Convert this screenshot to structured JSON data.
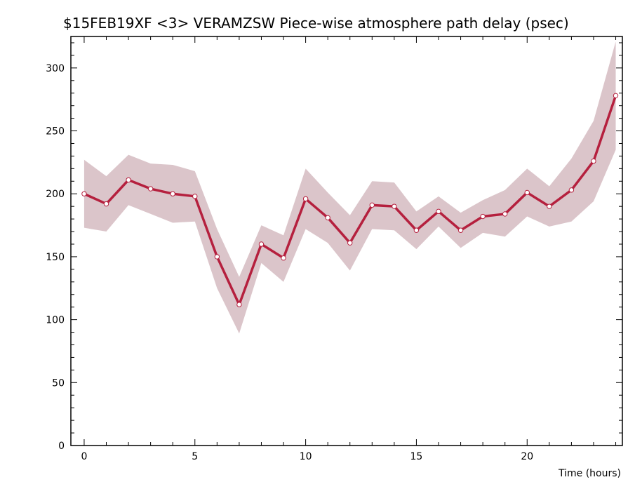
{
  "chart_data": {
    "type": "line",
    "title": "$15FEB19XF <3>  VERAMZSW  Piece-wise atmosphere path delay (psec)",
    "xlabel": "Time (hours)",
    "ylabel": "",
    "xlim": [
      -0.6,
      24.3
    ],
    "ylim": [
      0,
      325
    ],
    "x_ticks": [
      0,
      5,
      10,
      15,
      20
    ],
    "y_ticks": [
      0,
      50,
      100,
      150,
      200,
      250,
      300
    ],
    "x_minor_step": 1,
    "y_minor_step": 10,
    "grid": false,
    "colors": {
      "line": "#b5203e",
      "band": "#dbc5ca",
      "marker_fill": "#ffffff",
      "axis": "#000000"
    },
    "series": [
      {
        "x": [
          0,
          1,
          2,
          3,
          4,
          5,
          6,
          7,
          8,
          9,
          10,
          11,
          12,
          13,
          14,
          15,
          16,
          17,
          18,
          19,
          20,
          21,
          22,
          23,
          24
        ],
        "values": [
          200,
          192,
          211,
          204,
          200,
          198,
          150,
          112,
          160,
          149,
          196,
          181,
          161,
          191,
          190,
          171,
          186,
          171,
          182,
          184,
          201,
          190,
          203,
          226,
          278
        ],
        "upper": [
          227,
          214,
          231,
          224,
          223,
          218,
          172,
          134,
          175,
          167,
          220,
          201,
          183,
          210,
          209,
          186,
          198,
          185,
          195,
          203,
          220,
          206,
          228,
          258,
          321
        ],
        "lower": [
          173,
          170,
          191,
          184,
          177,
          178,
          125,
          89,
          145,
          130,
          172,
          161,
          139,
          172,
          171,
          156,
          174,
          157,
          169,
          166,
          182,
          174,
          178,
          194,
          235
        ]
      }
    ]
  }
}
